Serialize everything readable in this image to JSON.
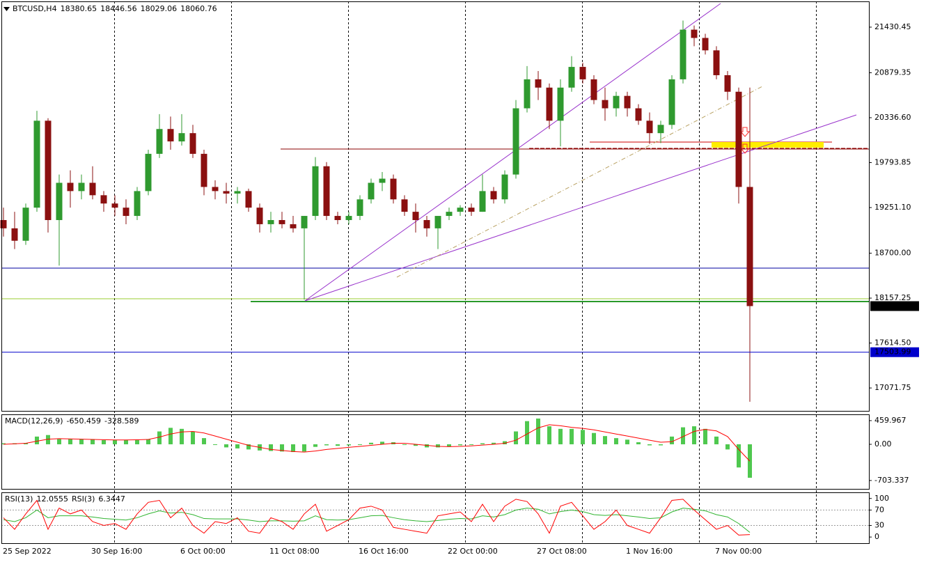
{
  "chart_data": [
    {
      "type": "candlestick",
      "title": "BTCUSD,H4",
      "header_values": [
        18380.65,
        18446.56,
        18029.06,
        18060.76
      ],
      "categories": [
        "25 Sep 2022",
        null,
        null,
        null,
        null,
        null,
        null,
        null,
        "30 Sep 16:00",
        null,
        null,
        null,
        null,
        null,
        null,
        null,
        "6 Oct 00:00",
        null,
        null,
        null,
        null,
        null,
        null,
        null,
        "11 Oct 08:00",
        null,
        null,
        null,
        null,
        null,
        null,
        null,
        "16 Oct 16:00",
        null,
        null,
        null,
        null,
        null,
        null,
        null,
        "22 Oct 00:00",
        null,
        null,
        null,
        null,
        null,
        null,
        null,
        "27 Oct 08:00",
        null,
        null,
        null,
        null,
        null,
        null,
        null,
        "1 Nov 16:00",
        null,
        null,
        null,
        null,
        null,
        null,
        null,
        "7 Nov 00:00",
        null,
        null,
        null
      ],
      "open": [
        19100,
        19000,
        18850,
        19250,
        20300,
        19100,
        19550,
        19450,
        19550,
        19400,
        19300,
        19250,
        19150,
        19450,
        19900,
        20200,
        20050,
        20150,
        19900,
        19500,
        19450,
        19420,
        19450,
        19250,
        19050,
        19100,
        19050,
        19000,
        19150,
        19750,
        19150,
        19100,
        19150,
        19350,
        19550,
        19600,
        19350,
        19200,
        19100,
        19000,
        19150,
        19200,
        19250,
        19200,
        19450,
        19350,
        19650,
        20450,
        20800,
        20700,
        20300,
        20700,
        20950,
        20800,
        20550,
        20450,
        20600,
        20450,
        20300,
        20150,
        20250,
        20800,
        21400,
        21300,
        21150,
        20850,
        20650,
        19500
      ],
      "high": [
        19250,
        19200,
        19300,
        20420,
        20330,
        19650,
        19700,
        19650,
        19750,
        19450,
        19400,
        19350,
        19500,
        19950,
        20380,
        20350,
        20380,
        20250,
        19950,
        19580,
        19550,
        19500,
        19480,
        19300,
        19200,
        19200,
        19150,
        19150,
        19860,
        19800,
        19200,
        19200,
        19400,
        19600,
        19680,
        19650,
        19400,
        19300,
        19150,
        19150,
        19250,
        19280,
        19300,
        19650,
        19500,
        19700,
        20550,
        20960,
        20900,
        20750,
        20800,
        21080,
        21000,
        20850,
        20700,
        20650,
        20650,
        20500,
        20400,
        20300,
        20850,
        21510,
        21450,
        21350,
        21200,
        20900,
        20700,
        20700
      ],
      "low": [
        18900,
        18750,
        18800,
        19200,
        18950,
        18550,
        19250,
        19350,
        19350,
        19200,
        19150,
        19050,
        19100,
        19400,
        19850,
        19950,
        20000,
        19850,
        19400,
        19350,
        19300,
        19300,
        19200,
        18950,
        18950,
        19000,
        18950,
        18140,
        19100,
        19100,
        19050,
        19050,
        19100,
        19300,
        19450,
        19300,
        19150,
        18950,
        18900,
        18750,
        19100,
        19150,
        19150,
        19200,
        19300,
        19300,
        19600,
        20400,
        20550,
        20200,
        19990,
        20650,
        20750,
        20500,
        20300,
        20350,
        20350,
        20250,
        20020,
        20030,
        20200,
        20750,
        21200,
        21100,
        20800,
        20550,
        19300,
        16905
      ],
      "close": [
        19000,
        18850,
        19250,
        20300,
        19100,
        19550,
        19450,
        19550,
        19400,
        19300,
        19250,
        19150,
        19450,
        19900,
        20200,
        20050,
        20150,
        19900,
        19500,
        19450,
        19420,
        19450,
        19250,
        19050,
        19100,
        19050,
        19000,
        19150,
        19750,
        19150,
        19100,
        19150,
        19350,
        19550,
        19600,
        19350,
        19200,
        19100,
        19000,
        19150,
        19200,
        19250,
        19200,
        19450,
        19350,
        19650,
        20450,
        20800,
        20700,
        20300,
        20700,
        20950,
        20800,
        20550,
        20450,
        20600,
        20450,
        20300,
        20150,
        20250,
        20800,
        21400,
        21300,
        21150,
        20850,
        20650,
        19500,
        18060.76
      ],
      "up_color": "#2f9a2f",
      "down_color": "#8b1010",
      "ylim": [
        16795,
        21733
      ],
      "yticks": [
        21430.45,
        20879.35,
        {
          "value": 20336.6,
          "label": "20336.60"
        },
        19793.85,
        {
          "value": 19251.1,
          "label": "19251.10"
        },
        {
          "value": 18700,
          "label": "18700.00"
        },
        18157.25,
        {
          "value": 17614.5,
          "label": "17614.50"
        },
        17071.75
      ],
      "level_line": 17503.99,
      "level_color": "#0000cc"
    },
    {
      "type": "macd",
      "title": "MACD(12,26,9)",
      "histogram": [
        20,
        20,
        20,
        150,
        180,
        100,
        100,
        100,
        100,
        80,
        80,
        80,
        80,
        100,
        250,
        320,
        300,
        250,
        120,
        0,
        -60,
        -80,
        -100,
        -120,
        -130,
        -140,
        -150,
        -140,
        -50,
        -20,
        -30,
        -20,
        0,
        30,
        50,
        40,
        0,
        -30,
        -60,
        -60,
        -40,
        -20,
        -10,
        20,
        30,
        60,
        250,
        450,
        500,
        350,
        300,
        300,
        280,
        220,
        160,
        120,
        90,
        40,
        -20,
        -20,
        150,
        330,
        350,
        300,
        150,
        -100,
        -450,
        -650.459
      ],
      "signal": [
        0,
        10,
        20,
        60,
        100,
        110,
        105,
        100,
        95,
        90,
        85,
        85,
        88,
        95,
        140,
        200,
        240,
        250,
        220,
        160,
        100,
        40,
        -20,
        -60,
        -100,
        -120,
        -140,
        -150,
        -130,
        -100,
        -80,
        -60,
        -40,
        -20,
        0,
        20,
        20,
        0,
        -20,
        -40,
        -45,
        -40,
        -30,
        -15,
        0,
        20,
        80,
        200,
        320,
        380,
        360,
        330,
        310,
        280,
        240,
        200,
        160,
        120,
        80,
        40,
        50,
        150,
        250,
        290,
        260,
        150,
        -100,
        -328.589
      ],
      "histogram_color": "#4fc84f",
      "signal_color": "#ff0000",
      "ylim": [
        -866,
        568
      ],
      "yticks": [
        459.967,
        {
          "value": 0,
          "label": "0.00"
        },
        -703.337
      ]
    },
    {
      "type": "line",
      "series": [
        {
          "name": "RSI(13)",
          "color": "#2fb42f",
          "values": [
            45,
            40,
            50,
            70,
            50,
            55,
            55,
            55,
            52,
            48,
            46,
            44,
            50,
            60,
            68,
            62,
            64,
            58,
            48,
            47,
            47,
            47,
            44,
            40,
            42,
            42,
            41,
            42,
            55,
            45,
            44,
            45,
            50,
            55,
            56,
            50,
            45,
            42,
            40,
            43,
            46,
            48,
            47,
            55,
            52,
            58,
            70,
            75,
            72,
            60,
            66,
            70,
            66,
            58,
            56,
            58,
            55,
            52,
            48,
            50,
            65,
            75,
            72,
            68,
            58,
            52,
            35,
            12.0555
          ]
        },
        {
          "name": "RSI(3)",
          "color": "#ff0000",
          "values": [
            50,
            20,
            60,
            95,
            20,
            75,
            60,
            70,
            40,
            30,
            35,
            20,
            60,
            90,
            95,
            50,
            75,
            30,
            10,
            40,
            35,
            50,
            15,
            10,
            50,
            40,
            20,
            60,
            85,
            15,
            30,
            45,
            75,
            80,
            70,
            25,
            20,
            15,
            10,
            55,
            60,
            65,
            40,
            85,
            40,
            80,
            98,
            92,
            60,
            10,
            80,
            90,
            55,
            20,
            40,
            70,
            30,
            20,
            10,
            50,
            95,
            98,
            70,
            45,
            20,
            30,
            5,
            6.3447
          ]
        }
      ],
      "ylim": [
        -16,
        114
      ],
      "yticks": [
        100,
        70,
        30,
        0
      ],
      "levels": [
        70,
        30
      ]
    }
  ]
}
